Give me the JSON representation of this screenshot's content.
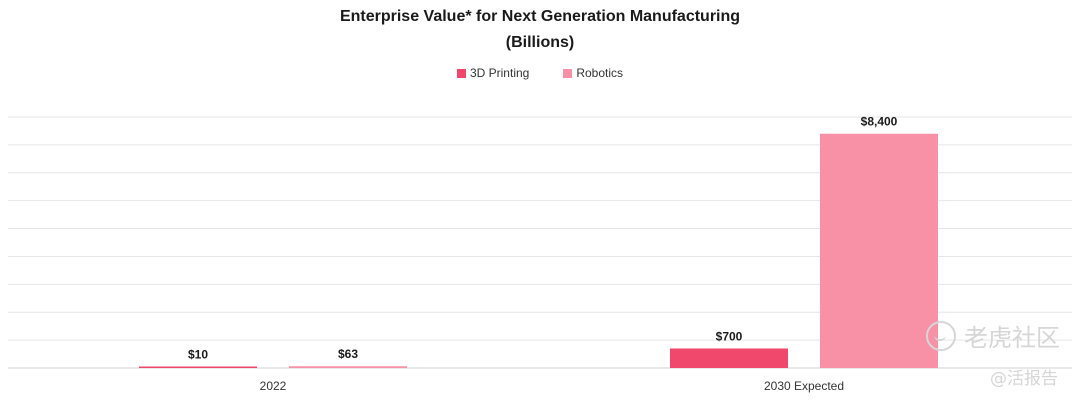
{
  "chart_data": {
    "type": "bar",
    "title": "Enterprise Value* for Next Generation Manufacturing",
    "subtitle": "(Billions)",
    "categories": [
      "2022",
      "2030 Expected"
    ],
    "series": [
      {
        "name": "3D Printing",
        "color": "#f0476d",
        "values": [
          10,
          700
        ],
        "labels": [
          "$10",
          "$700"
        ]
      },
      {
        "name": "Robotics",
        "color": "#f991a6",
        "values": [
          63,
          8400
        ],
        "labels": [
          "$63",
          "$8,400"
        ]
      }
    ],
    "ylim": [
      0,
      9000
    ],
    "grid": true,
    "legend": "top-center"
  },
  "watermark": {
    "line1": "老虎社区",
    "line2": "@活报告"
  }
}
